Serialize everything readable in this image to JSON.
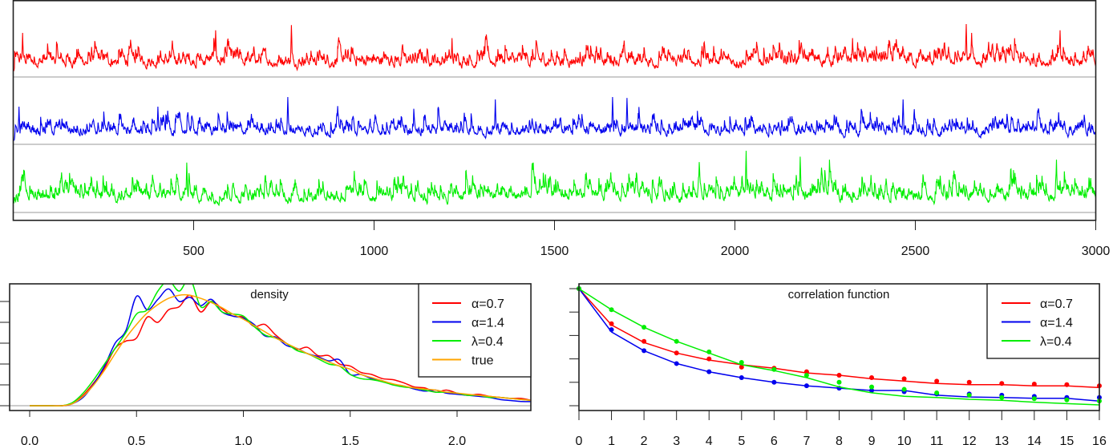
{
  "colors": {
    "red": "#ff0000",
    "blue": "#0000ee",
    "green": "#00ee00",
    "orange": "#ffa500",
    "baseline": "#bbbbbb"
  },
  "chart_data": [
    {
      "type": "line",
      "panel": "time-series",
      "xlim": [
        0,
        3000
      ],
      "xticks": [
        500,
        1000,
        1500,
        2000,
        2500,
        3000
      ],
      "xtick_labels": [
        "500",
        "1000",
        "1500",
        "2000",
        "2500",
        "3000"
      ],
      "n": 3000,
      "series": [
        {
          "color": "red",
          "peaks": [
            [
              25,
              0.8
            ],
            [
              560,
              0.85
            ],
            [
              770,
              0.95
            ],
            [
              1215,
              0.7
            ],
            [
              2325,
              0.7
            ],
            [
              2640,
              0.97
            ],
            [
              2655,
              0.8
            ],
            [
              2900,
              0.85
            ]
          ]
        },
        {
          "color": "blue",
          "peaks": [
            [
              15,
              0.75
            ],
            [
              400,
              0.75
            ],
            [
              760,
              0.95
            ],
            [
              1335,
              0.9
            ],
            [
              1660,
              0.95
            ],
            [
              1700,
              0.93
            ],
            [
              2465,
              0.9
            ]
          ]
        },
        {
          "color": "green",
          "peaks": [
            [
              480,
              0.8
            ],
            [
              1440,
              0.8
            ],
            [
              2030,
              1.0
            ],
            [
              2180,
              0.9
            ],
            [
              2890,
              0.85
            ]
          ]
        }
      ]
    },
    {
      "type": "line",
      "panel": "density",
      "title": "density",
      "xlim": [
        -0.1,
        2.35
      ],
      "ylim": [
        -0.046,
        1.17
      ],
      "xticks": [
        0.0,
        0.5,
        1.0,
        1.5,
        2.0
      ],
      "xtick_labels": [
        "0.0",
        "0.5",
        "1.0",
        "1.5",
        "2.0"
      ],
      "yticks": [
        0,
        0.2,
        0.4,
        0.6,
        0.8,
        1.0
      ],
      "x": [
        0,
        0.05,
        0.1,
        0.15,
        0.2,
        0.25,
        0.3,
        0.35,
        0.4,
        0.45,
        0.5,
        0.55,
        0.6,
        0.65,
        0.7,
        0.75,
        0.8,
        0.85,
        0.9,
        0.95,
        1.0,
        1.05,
        1.1,
        1.15,
        1.2,
        1.25,
        1.3,
        1.35,
        1.4,
        1.45,
        1.5,
        1.55,
        1.6,
        1.65,
        1.7,
        1.75,
        1.8,
        1.85,
        1.9,
        1.95,
        2.0,
        2.05,
        2.1,
        2.15,
        2.2,
        2.25,
        2.3,
        2.35
      ],
      "series": [
        {
          "name": "α=0.7",
          "color": "red",
          "values": [
            0,
            0,
            0,
            0,
            0.02,
            0.1,
            0.22,
            0.36,
            0.55,
            0.62,
            0.65,
            0.85,
            0.8,
            0.92,
            0.95,
            1.06,
            0.9,
            1.0,
            0.93,
            0.86,
            0.85,
            0.76,
            0.78,
            0.68,
            0.6,
            0.54,
            0.56,
            0.48,
            0.48,
            0.4,
            0.38,
            0.32,
            0.3,
            0.26,
            0.25,
            0.22,
            0.18,
            0.17,
            0.13,
            0.15,
            0.12,
            0.1,
            0.11,
            0.09,
            0.08,
            0.07,
            0.07,
            0.05
          ]
        },
        {
          "name": "α=1.4",
          "color": "blue",
          "values": [
            0,
            0,
            0,
            0,
            0.02,
            0.08,
            0.21,
            0.38,
            0.6,
            0.72,
            1.05,
            0.92,
            1.02,
            1.12,
            1.0,
            1.04,
            0.96,
            1.02,
            0.9,
            0.86,
            0.84,
            0.78,
            0.67,
            0.66,
            0.58,
            0.55,
            0.5,
            0.47,
            0.43,
            0.44,
            0.3,
            0.3,
            0.26,
            0.24,
            0.2,
            0.19,
            0.16,
            0.14,
            0.15,
            0.12,
            0.11,
            0.1,
            0.09,
            0.08,
            0.06,
            0.05,
            0.04,
            0.04
          ]
        },
        {
          "name": "λ=0.4",
          "color": "green",
          "values": [
            0,
            0,
            0,
            0,
            0.03,
            0.12,
            0.25,
            0.4,
            0.55,
            0.7,
            0.88,
            0.92,
            1.1,
            1.2,
            1.1,
            1.22,
            0.95,
            1.0,
            0.9,
            0.88,
            0.86,
            0.76,
            0.68,
            0.65,
            0.6,
            0.53,
            0.5,
            0.45,
            0.4,
            0.38,
            0.3,
            0.26,
            0.25,
            0.23,
            0.2,
            0.18,
            0.17,
            0.15,
            0.13,
            0.13,
            0.12,
            0.1,
            0.1,
            0.08,
            0.08,
            0.07,
            0.06,
            0.05
          ]
        },
        {
          "name": "true",
          "color": "orange",
          "values": [
            0,
            0,
            0,
            0,
            0.02,
            0.09,
            0.2,
            0.34,
            0.5,
            0.65,
            0.78,
            0.89,
            0.97,
            1.03,
            1.06,
            1.06,
            1.03,
            0.99,
            0.94,
            0.88,
            0.83,
            0.77,
            0.71,
            0.65,
            0.6,
            0.55,
            0.5,
            0.46,
            0.42,
            0.38,
            0.35,
            0.3,
            0.27,
            0.24,
            0.21,
            0.19,
            0.17,
            0.16,
            0.15,
            0.13,
            0.12,
            0.11,
            0.1,
            0.09,
            0.08,
            0.07,
            0.06,
            0.05
          ]
        }
      ],
      "legend": "top-right"
    },
    {
      "type": "line",
      "panel": "correlation",
      "title": "correlation function",
      "xlim": [
        0,
        16
      ],
      "ylim": [
        -0.04,
        1.04
      ],
      "xticks": [
        0,
        1,
        2,
        3,
        4,
        5,
        6,
        7,
        8,
        9,
        10,
        11,
        12,
        13,
        14,
        15,
        16
      ],
      "xtick_labels": [
        "0",
        "1",
        "2",
        "3",
        "4",
        "5",
        "6",
        "7",
        "8",
        "9",
        "10",
        "11",
        "12",
        "13",
        "14",
        "15",
        "16"
      ],
      "yticks": [
        0,
        0.2,
        0.4,
        0.6,
        0.8,
        1.0
      ],
      "x": [
        0,
        1,
        2,
        3,
        4,
        5,
        6,
        7,
        8,
        9,
        10,
        11,
        12,
        13,
        14,
        15,
        16
      ],
      "series": [
        {
          "name": "α=0.7",
          "color": "red",
          "line": [
            1,
            0.69,
            0.54,
            0.45,
            0.39,
            0.35,
            0.32,
            0.28,
            0.26,
            0.23,
            0.21,
            0.19,
            0.18,
            0.18,
            0.17,
            0.17,
            0.155
          ],
          "points": [
            1,
            0.7,
            0.55,
            0.45,
            0.4,
            0.33,
            0.32,
            0.29,
            0.26,
            0.24,
            0.23,
            0.21,
            0.2,
            0.19,
            0.185,
            0.18,
            0.17
          ]
        },
        {
          "name": "α=1.4",
          "color": "blue",
          "line": [
            1,
            0.63,
            0.47,
            0.36,
            0.29,
            0.24,
            0.2,
            0.17,
            0.15,
            0.13,
            0.13,
            0.09,
            0.075,
            0.07,
            0.064,
            0.064,
            0.04
          ],
          "points": [
            1,
            0.65,
            0.47,
            0.36,
            0.29,
            0.24,
            0.2,
            0.17,
            0.15,
            0.13,
            0.12,
            0.1,
            0.1,
            0.09,
            0.08,
            0.07,
            0.07
          ]
        },
        {
          "name": "λ=0.4",
          "color": "green",
          "line": [
            1,
            0.82,
            0.67,
            0.55,
            0.45,
            0.35,
            0.3,
            0.24,
            0.16,
            0.11,
            0.08,
            0.07,
            0.055,
            0.046,
            0.03,
            0.018,
            0.007
          ],
          "points": [
            1,
            0.82,
            0.67,
            0.55,
            0.46,
            0.37,
            0.31,
            0.26,
            0.2,
            0.16,
            0.14,
            0.11,
            0.09,
            0.07,
            0.06,
            0.05,
            0.04
          ]
        }
      ],
      "legend": "top-right"
    }
  ]
}
